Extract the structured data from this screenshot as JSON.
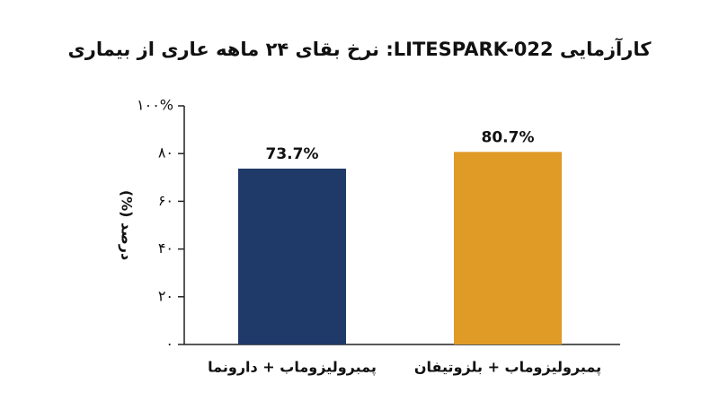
{
  "chart_data": {
    "type": "bar",
    "title": "کارآزمایی LITESPARK-022: نرخ بقای ۲۴ ماهه عاری از بیماری",
    "y_label": "درصد (%)",
    "categories": [
      "پمبرولیزوماب + دارونما",
      "پمبرولیزوماب + بلزوتیفان"
    ],
    "values": [
      73.7,
      80.7
    ],
    "value_labels": [
      "73.7%",
      "80.7%"
    ],
    "colors": [
      "#1f3a68",
      "#e09a26"
    ],
    "ylim": [
      0,
      100
    ],
    "yticks": [
      {
        "value": 0,
        "label": "۰"
      },
      {
        "value": 20,
        "label": "۲۰"
      },
      {
        "value": 40,
        "label": "۴۰"
      },
      {
        "value": 60,
        "label": "۶۰"
      },
      {
        "value": 80,
        "label": "۸۰"
      },
      {
        "value": 100,
        "label": "۱۰۰%"
      }
    ],
    "grid": false
  }
}
